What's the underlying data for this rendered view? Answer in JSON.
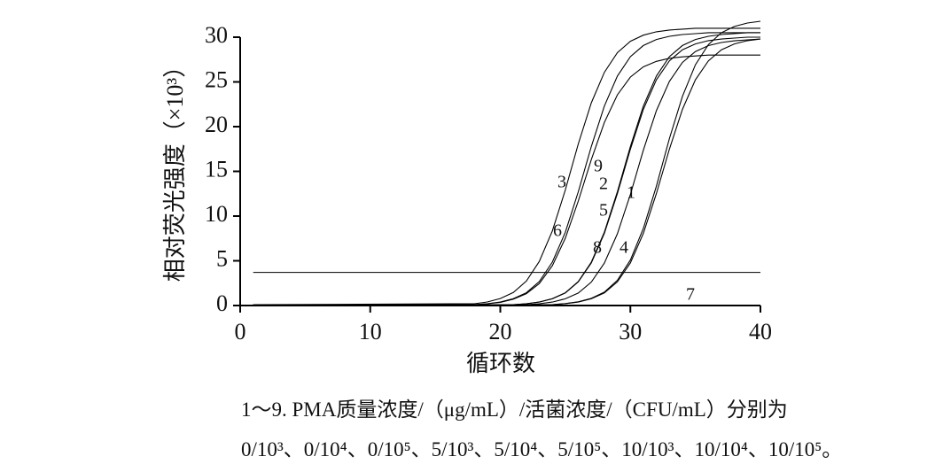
{
  "chart_data": {
    "type": "line",
    "xlabel": "循环数",
    "ylabel": "相对荧光强度（×10³）",
    "caption": [
      "1～9. PMA质量浓度/（μg/mL）/活菌浓度/（CFU/mL）分别为",
      "0/10³、0/10⁴、0/10⁵、5/10³、5/10⁴、5/10⁵、10/10³、10/10⁴、10/10⁵。"
    ],
    "x": [
      1,
      18,
      19,
      20,
      21,
      22,
      23,
      24,
      25,
      26,
      27,
      28,
      29,
      30,
      31,
      32,
      33,
      34,
      35,
      36,
      37,
      38,
      39,
      40
    ],
    "series": [
      {
        "name": "1",
        "color": "#000000",
        "values": [
          0.1,
          0.1,
          0.1,
          0.1,
          0.1,
          0.1,
          0.1,
          0.1,
          0.22,
          0.42,
          0.8,
          1.5,
          2.82,
          5.09,
          8.61,
          13.34,
          18.66,
          23.39,
          26.91,
          29.18,
          30.5,
          31.2,
          31.58,
          31.78
        ]
      },
      {
        "name": "2",
        "color": "#000000",
        "values": [
          0.1,
          0.1,
          0.1,
          0.1,
          0.1,
          0.2,
          0.4,
          0.76,
          1.43,
          2.68,
          4.85,
          8.2,
          12.72,
          17.78,
          22.3,
          25.65,
          27.82,
          29.07,
          29.74,
          30.1,
          30.3,
          30.4,
          30.5,
          30.5
        ]
      },
      {
        "name": "3",
        "color": "#000000",
        "values": [
          0.1,
          0.2,
          0.4,
          0.78,
          1.46,
          2.73,
          4.93,
          8.34,
          12.93,
          18.07,
          22.66,
          26.07,
          28.27,
          29.54,
          30.23,
          30.6,
          30.8,
          30.9,
          31,
          31,
          31,
          31,
          31,
          31
        ]
      },
      {
        "name": "4",
        "color": "#000000",
        "values": [
          0.1,
          0.1,
          0.1,
          0.1,
          0.1,
          0.1,
          0.1,
          0.1,
          0.21,
          0.39,
          0.75,
          1.41,
          2.64,
          4.77,
          8.07,
          12.51,
          17.49,
          21.93,
          25.23,
          27.36,
          28.59,
          29.25,
          29.61,
          29.79
        ]
      },
      {
        "name": "5",
        "color": "#000000",
        "values": [
          0.1,
          0.1,
          0.1,
          0.1,
          0.1,
          0.2,
          0.39,
          0.75,
          1.41,
          2.64,
          4.77,
          8.07,
          12.51,
          17.49,
          21.93,
          25.23,
          27.36,
          28.59,
          29.25,
          29.61,
          29.79,
          29.9,
          30,
          30
        ]
      },
      {
        "name": "6",
        "color": "#000000",
        "values": [
          0.1,
          0.1,
          0.2,
          0.36,
          0.7,
          1.32,
          2.46,
          4.45,
          7.53,
          11.68,
          16.32,
          20.47,
          23.55,
          25.54,
          26.68,
          27.3,
          27.64,
          27.8,
          27.9,
          28,
          28,
          28,
          28,
          28
        ]
      },
      {
        "name": "7",
        "color": "#000000",
        "values": [
          0,
          0,
          0,
          0,
          0,
          0,
          0,
          0,
          0,
          0,
          0,
          0,
          0,
          0,
          0,
          0,
          0,
          0,
          0,
          0,
          0,
          0,
          0,
          0
        ]
      },
      {
        "name": "8",
        "color": "#000000",
        "values": [
          0.1,
          0.1,
          0.1,
          0.1,
          0.1,
          0.1,
          0.2,
          0.39,
          0.75,
          1.4,
          2.62,
          4.74,
          8.02,
          12.43,
          17.37,
          21.78,
          25.06,
          27.18,
          28.4,
          29.06,
          29.41,
          29.59,
          29.7,
          29.8
        ]
      },
      {
        "name": "9",
        "color": "#000000",
        "values": [
          0.1,
          0.1,
          0.2,
          0.4,
          0.76,
          1.43,
          2.68,
          4.85,
          8.2,
          12.72,
          17.78,
          22.3,
          25.65,
          27.82,
          29.07,
          29.74,
          30.1,
          30.3,
          30.4,
          30.5,
          30.5,
          30.5,
          30.5,
          30.5
        ]
      }
    ],
    "threshold": 3.7,
    "xlim": [
      0,
      40
    ],
    "xticks": [
      0,
      10,
      20,
      30,
      40
    ],
    "ylim": [
      0,
      32
    ],
    "yticks": [
      0,
      5,
      10,
      15,
      20,
      25,
      30
    ]
  }
}
